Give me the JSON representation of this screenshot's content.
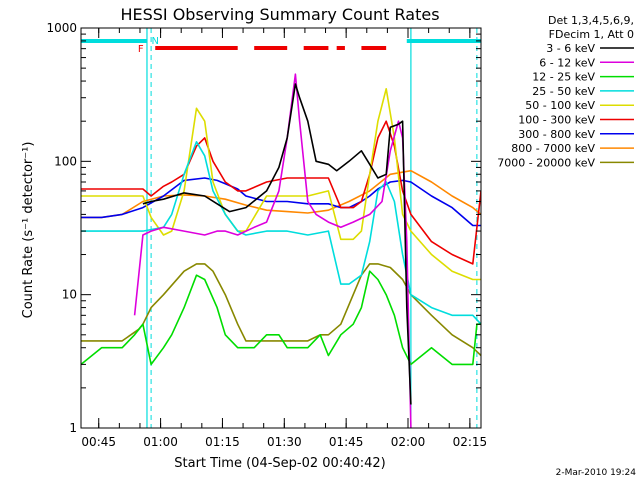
{
  "chart_data": {
    "type": "line",
    "title": "HESSI Observing Summary Count Rates",
    "xlabel": "Start Time (04-Sep-02 00:40:42)",
    "ylabel": "Count Rate (s⁻¹ detector⁻¹)",
    "ylog": true,
    "ylim": [
      1,
      1000
    ],
    "xlim_minutes_after_0040": [
      0,
      97
    ],
    "x_ticks": [
      "00:45",
      "01:00",
      "01:15",
      "01:30",
      "01:45",
      "02:00",
      "02:15"
    ],
    "y_ticks": [
      "1",
      "10",
      "100",
      "1000"
    ],
    "legend_header": [
      "Det 1,3,4,5,6,9,",
      "FDecim 1, Att 0"
    ],
    "legend_position": "right",
    "flags": {
      "F_label": "F",
      "N_label": "N",
      "night_segments": [
        [
          0,
          16
        ],
        [
          79,
          97
        ]
      ],
      "flare_segments": [
        [
          18,
          38
        ],
        [
          42,
          50
        ],
        [
          54,
          60
        ],
        [
          62,
          64
        ],
        [
          68,
          74
        ]
      ],
      "cyan_markers": [
        16,
        80
      ],
      "cyan_dashed_markers": [
        17,
        96
      ]
    },
    "series": [
      {
        "name": "3 - 6 keV",
        "color": "#000000",
        "x": [
          15,
          17,
          20,
          25,
          30,
          33,
          36,
          40,
          45,
          48,
          50,
          52,
          53,
          55,
          57,
          60,
          62,
          65,
          68,
          70,
          72,
          74,
          75,
          77,
          78,
          79,
          80
        ],
        "y": [
          48,
          50,
          52,
          58,
          55,
          48,
          42,
          45,
          60,
          90,
          150,
          380,
          300,
          200,
          100,
          95,
          85,
          100,
          120,
          95,
          75,
          80,
          180,
          190,
          200,
          8,
          1.5
        ]
      },
      {
        "name": "6 - 12 keV",
        "color": "#dd00dd",
        "x": [
          13,
          15,
          17,
          20,
          25,
          30,
          33,
          35,
          38,
          42,
          45,
          48,
          50,
          52,
          53,
          55,
          57,
          60,
          63,
          66,
          70,
          73,
          75,
          77,
          78,
          79,
          80
        ],
        "y": [
          7,
          28,
          30,
          32,
          30,
          28,
          30,
          30,
          28,
          32,
          35,
          60,
          150,
          450,
          200,
          50,
          40,
          35,
          32,
          35,
          40,
          50,
          120,
          200,
          150,
          25,
          1
        ]
      },
      {
        "name": "12 - 25 keV",
        "color": "#00dd00",
        "x": [
          0,
          5,
          10,
          13,
          15,
          17,
          20,
          22,
          25,
          28,
          30,
          33,
          35,
          38,
          42,
          45,
          48,
          50,
          55,
          58,
          60,
          63,
          66,
          68,
          70,
          72,
          74,
          76,
          78,
          80,
          85,
          90,
          95,
          96,
          97
        ],
        "y": [
          3,
          4,
          4,
          5,
          6,
          3,
          4,
          5,
          8,
          14,
          13,
          8,
          5,
          4,
          4,
          5,
          5,
          4,
          4,
          5,
          3.5,
          5,
          6,
          8,
          15,
          13,
          10,
          7,
          4,
          3,
          4,
          3,
          3,
          6,
          6
        ]
      },
      {
        "name": "25 - 50 keV",
        "color": "#00dddd",
        "x": [
          0,
          5,
          10,
          15,
          20,
          22,
          25,
          28,
          30,
          32,
          35,
          38,
          40,
          45,
          50,
          55,
          60,
          63,
          65,
          68,
          70,
          72,
          74,
          76,
          78,
          80,
          85,
          90,
          95,
          97
        ],
        "y": [
          30,
          30,
          30,
          30,
          32,
          40,
          80,
          140,
          110,
          60,
          40,
          30,
          28,
          30,
          30,
          28,
          30,
          12,
          12,
          14,
          25,
          60,
          70,
          50,
          20,
          10,
          8,
          7,
          7,
          6
        ]
      },
      {
        "name": "50 - 100 keV",
        "color": "#dddd00",
        "x": [
          0,
          5,
          10,
          15,
          17,
          20,
          22,
          25,
          28,
          30,
          32,
          35,
          38,
          40,
          45,
          50,
          55,
          60,
          63,
          66,
          68,
          70,
          72,
          74,
          76,
          78,
          80,
          85,
          90,
          95,
          97
        ],
        "y": [
          55,
          55,
          55,
          55,
          38,
          28,
          30,
          60,
          250,
          200,
          70,
          40,
          30,
          30,
          55,
          55,
          55,
          60,
          26,
          26,
          30,
          80,
          200,
          350,
          150,
          40,
          30,
          20,
          15,
          13,
          13
        ]
      },
      {
        "name": "100 - 300 keV",
        "color": "#ee0000",
        "x": [
          0,
          5,
          10,
          15,
          17,
          20,
          22,
          25,
          28,
          30,
          32,
          35,
          38,
          40,
          45,
          50,
          55,
          60,
          63,
          66,
          68,
          70,
          72,
          74,
          76,
          78,
          80,
          85,
          90,
          95,
          97
        ],
        "y": [
          62,
          62,
          62,
          62,
          55,
          65,
          70,
          80,
          130,
          150,
          100,
          70,
          60,
          60,
          70,
          75,
          75,
          75,
          45,
          45,
          50,
          80,
          150,
          200,
          130,
          60,
          40,
          25,
          20,
          17,
          60
        ]
      },
      {
        "name": "300 - 800 keV",
        "color": "#0000ee",
        "x": [
          0,
          5,
          10,
          15,
          20,
          25,
          30,
          33,
          35,
          38,
          40,
          45,
          50,
          55,
          60,
          63,
          65,
          68,
          70,
          72,
          75,
          78,
          80,
          85,
          90,
          95,
          97
        ],
        "y": [
          38,
          38,
          40,
          45,
          55,
          72,
          75,
          72,
          68,
          62,
          55,
          50,
          50,
          48,
          48,
          45,
          45,
          50,
          55,
          62,
          70,
          72,
          70,
          55,
          45,
          33,
          33
        ]
      },
      {
        "name": "800 - 7000 keV",
        "color": "#ff8800",
        "x": [
          0,
          5,
          10,
          15,
          20,
          25,
          30,
          35,
          40,
          45,
          50,
          55,
          60,
          65,
          70,
          75,
          80,
          85,
          90,
          95,
          97
        ],
        "y": [
          38,
          38,
          40,
          50,
          55,
          56,
          55,
          52,
          47,
          43,
          42,
          41,
          43,
          50,
          60,
          80,
          85,
          70,
          55,
          45,
          40
        ]
      },
      {
        "name": "7000 - 20000 keV",
        "color": "#888800",
        "x": [
          0,
          5,
          10,
          14,
          15,
          17,
          20,
          25,
          28,
          30,
          32,
          35,
          38,
          40,
          45,
          50,
          55,
          58,
          60,
          63,
          66,
          68,
          70,
          72,
          75,
          78,
          80,
          85,
          90,
          95,
          97
        ],
        "y": [
          4.5,
          4.5,
          4.5,
          5.5,
          6,
          8,
          10,
          15,
          17,
          17,
          15,
          10,
          6,
          4.5,
          4.5,
          4.5,
          4.5,
          5,
          5,
          6,
          10,
          14,
          17,
          17,
          16,
          13,
          10,
          7,
          5,
          4,
          3.5
        ]
      }
    ],
    "timestamp": "2-Mar-2010 19:24"
  }
}
